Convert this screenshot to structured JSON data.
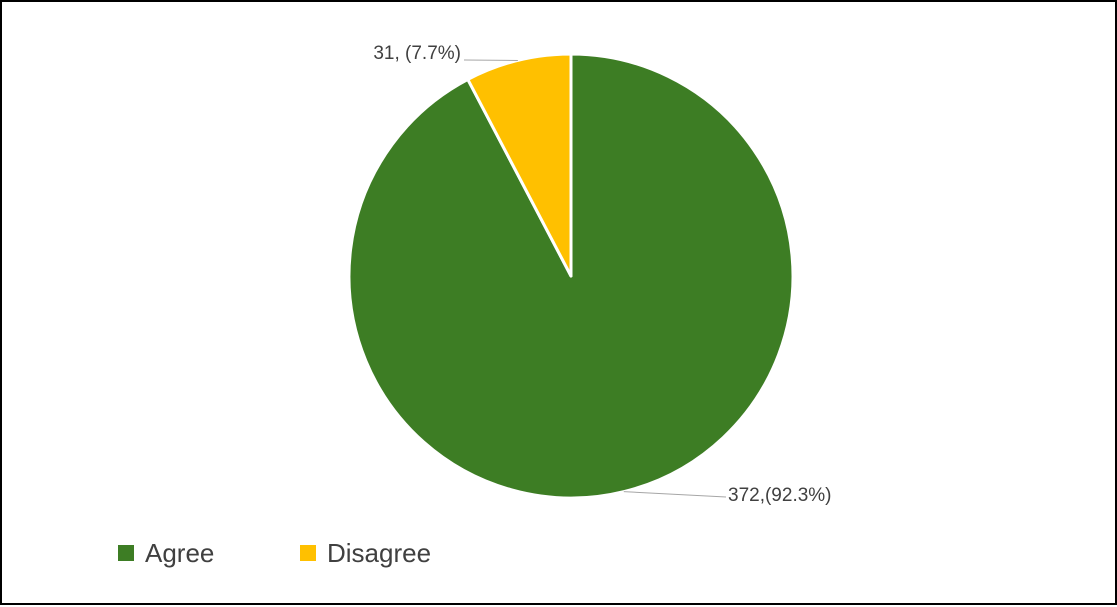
{
  "chart_data": {
    "type": "pie",
    "title": "",
    "series": [
      {
        "name": "",
        "slices": [
          {
            "label": "Agree",
            "value": 372,
            "percent": 92.3,
            "color": "#3D7D24",
            "data_label": "372,(92.3%)"
          },
          {
            "label": "Disagree",
            "value": 31,
            "percent": 7.7,
            "color": "#FFC000",
            "data_label": "31, (7.7%)"
          }
        ]
      }
    ],
    "legend": {
      "position": "bottom-left",
      "entries": [
        "Agree",
        "Disagree"
      ]
    },
    "start_angle": "12 o'clock",
    "direction": "clockwise"
  }
}
